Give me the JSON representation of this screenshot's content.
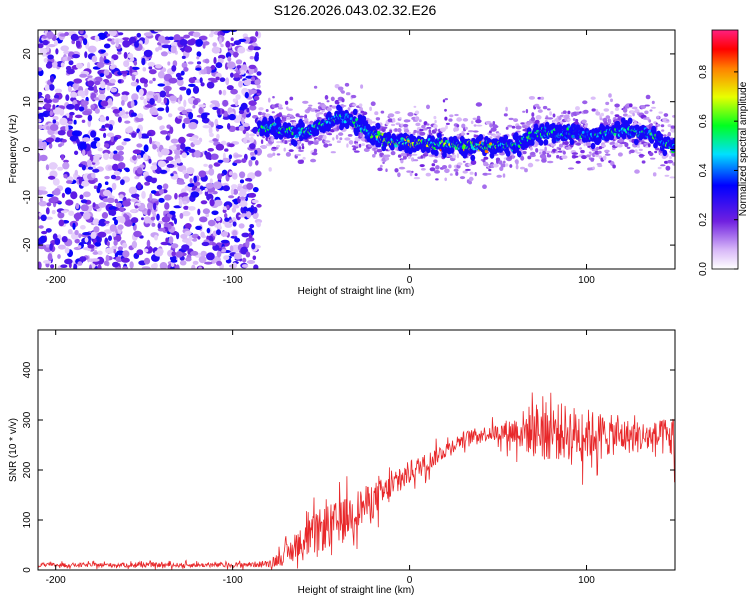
{
  "title": "S126.2026.043.02.32.E26",
  "chart_data": [
    {
      "type": "heatmap",
      "name": "spectrogram",
      "xlabel": "Height of straight line (km)",
      "ylabel": "Frequency (Hz)",
      "xlim": [
        -210,
        150
      ],
      "ylim": [
        -25,
        25
      ],
      "xticks": [
        -200,
        -100,
        0,
        100
      ],
      "xtick_labels": [
        "-200",
        "-100",
        "0",
        "100"
      ],
      "yticks": [
        20,
        10,
        0,
        -10,
        -20
      ],
      "ytick_labels": [
        "20",
        "10",
        "0",
        "-10",
        "-20"
      ],
      "noise_region_x": [
        -210,
        -85
      ],
      "ridge": {
        "x": [
          -85,
          -75,
          -65,
          -55,
          -45,
          -40,
          -35,
          -30,
          -25,
          -20,
          -15,
          -10,
          -5,
          0,
          5,
          10,
          15,
          20,
          25,
          30,
          35,
          40,
          45,
          50,
          55,
          60,
          65,
          70,
          75,
          80,
          85,
          90,
          95,
          100,
          105,
          110,
          115,
          120,
          125,
          130,
          135,
          140,
          145,
          150
        ],
        "y": [
          4.5,
          4.5,
          3.5,
          4.0,
          6.0,
          7.0,
          6.5,
          5.5,
          4.0,
          3.0,
          2.0,
          1.5,
          1.5,
          1.5,
          1.5,
          1.0,
          1.0,
          1.0,
          1.0,
          0.5,
          0.5,
          1.0,
          0.5,
          0.5,
          1.0,
          0.5,
          2.0,
          3.0,
          3.5,
          3.5,
          3.0,
          3.5,
          3.5,
          3.0,
          3.0,
          3.0,
          4.0,
          4.0,
          4.0,
          3.5,
          3.5,
          2.5,
          1.0,
          0.5
        ]
      },
      "colorbar": {
        "label": "Normalized spectral amplitude",
        "ticks": [
          0.0,
          0.2,
          0.4,
          0.6,
          0.8
        ],
        "tick_labels": [
          "0.0",
          "0.2",
          "0.4",
          "0.6",
          "0.8"
        ],
        "range": [
          0,
          0.97
        ]
      }
    },
    {
      "type": "line",
      "name": "snr",
      "xlabel": "Height of straight line (km)",
      "ylabel": "SNR (10 * v/v)",
      "xlim": [
        -210,
        150
      ],
      "ylim": [
        0,
        480
      ],
      "xticks": [
        -200,
        -100,
        0,
        100
      ],
      "xtick_labels": [
        "-200",
        "-100",
        "0",
        "100"
      ],
      "yticks": [
        0,
        100,
        200,
        300,
        400
      ],
      "ytick_labels": [
        "0",
        "100",
        "200",
        "300",
        "400"
      ],
      "color": "#e8282a",
      "envelope": {
        "x": [
          -210,
          -100,
          -80,
          -70,
          -60,
          -50,
          -40,
          -30,
          -20,
          -10,
          0,
          10,
          20,
          30,
          40,
          50,
          60,
          70,
          80,
          90,
          100,
          110,
          120,
          130,
          140,
          150
        ],
        "mean": [
          10,
          10,
          12,
          30,
          55,
          80,
          95,
          120,
          140,
          165,
          195,
          215,
          240,
          262,
          272,
          275,
          278,
          280,
          278,
          275,
          272,
          270,
          268,
          266,
          265,
          265
        ],
        "spread": [
          5,
          6,
          8,
          25,
          45,
          55,
          55,
          50,
          45,
          35,
          30,
          25,
          20,
          18,
          18,
          22,
          40,
          70,
          75,
          70,
          65,
          55,
          45,
          40,
          40,
          60
        ]
      }
    }
  ]
}
